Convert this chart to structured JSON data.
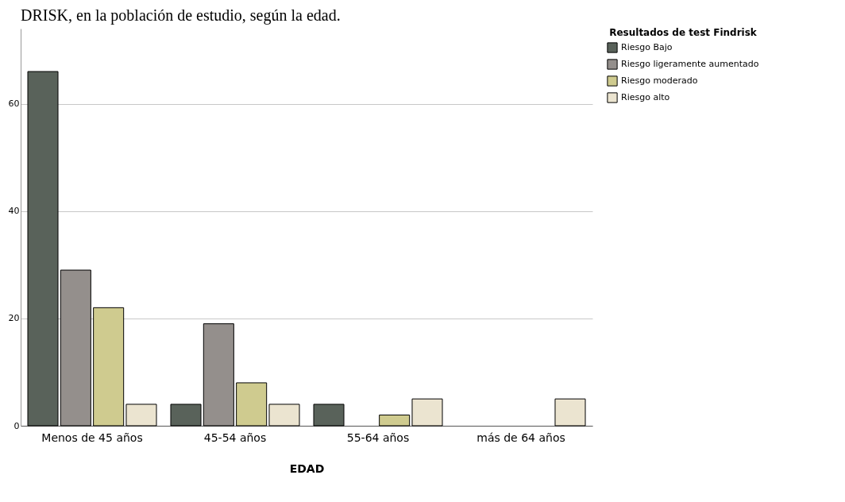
{
  "chart_data": {
    "type": "bar",
    "title": "DRISK, en la población de estudio, según la edad.",
    "xlabel": "EDAD",
    "legend_title": "Resultados de test Findrisk",
    "categories": [
      "Menos de 45 años",
      "45-54 años",
      "55-64 años",
      "más de 64 años"
    ],
    "series": [
      {
        "name": "Riesgo Bajo",
        "color": "#59625a",
        "values": [
          66,
          4,
          4,
          null
        ]
      },
      {
        "name": "Riesgo ligeramente aumentado",
        "color": "#948f8c",
        "values": [
          29,
          19,
          null,
          null
        ]
      },
      {
        "name": "Riesgo moderado",
        "color": "#cfcb8f",
        "values": [
          22,
          8,
          2,
          null
        ]
      },
      {
        "name": "Riesgo alto",
        "color": "#ebe4d0",
        "values": [
          4,
          4,
          5,
          5
        ]
      }
    ],
    "ylim": [
      0,
      74
    ],
    "yticks": [
      0,
      20,
      40,
      60
    ],
    "grid": "y",
    "legend": "top right"
  }
}
